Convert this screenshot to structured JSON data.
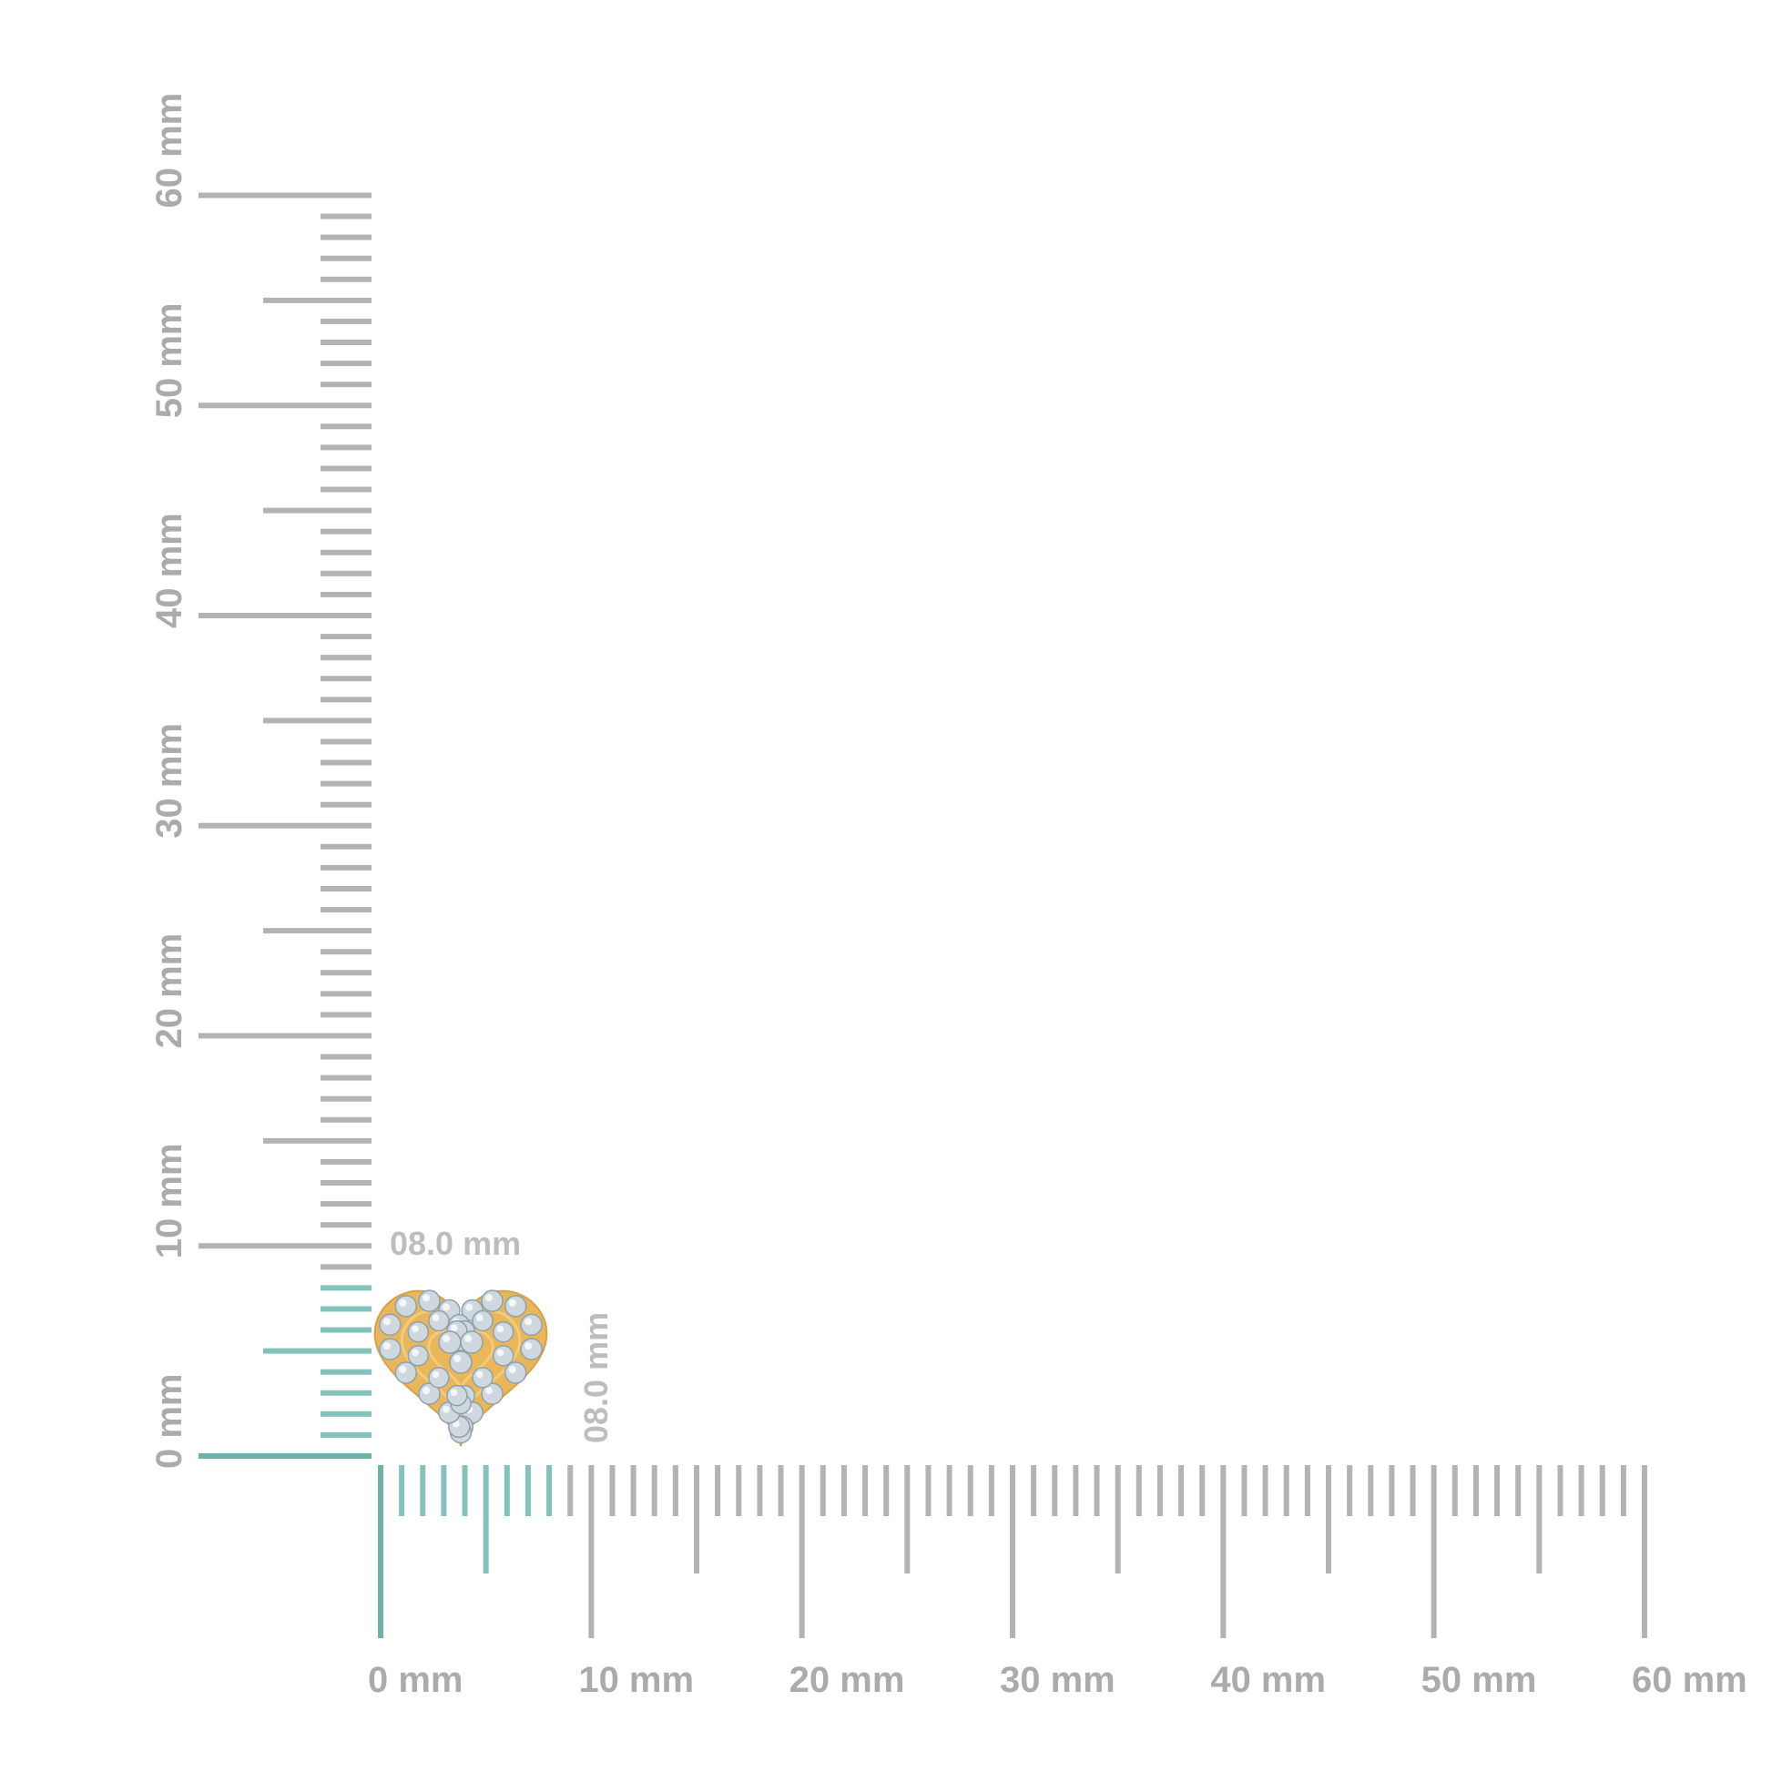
{
  "colors": {
    "tick_gray": "#b3b3b3",
    "tick_highlight": "#84c2bc",
    "tick_highlight_zero": "#6fb0a9",
    "label_gray": "#ababab",
    "gold": "#e9b75a",
    "gem": "#cfd8de"
  },
  "horizontal_ruler": {
    "range_mm": [
      0,
      60
    ],
    "highlight_mm": 8.0,
    "labels": [
      "0 mm",
      "10 mm",
      "20 mm",
      "30 mm",
      "40 mm",
      "50 mm",
      "60 mm"
    ]
  },
  "vertical_ruler": {
    "range_mm": [
      0,
      60
    ],
    "highlight_mm": 8.0,
    "labels": [
      "0 mm",
      "10 mm",
      "20 mm",
      "30 mm",
      "40 mm",
      "50 mm",
      "60 mm"
    ]
  },
  "product": {
    "image": "heart-shaped-diamond-cluster-earring",
    "width_label": "08.0 mm",
    "height_label": "08.0 mm"
  }
}
